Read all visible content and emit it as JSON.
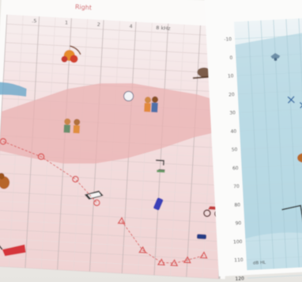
{
  "chart_data": {
    "type": "scatter",
    "title": "",
    "ear_label": "Right",
    "top_ticks": [
      ".5",
      "1",
      "2",
      "4",
      "8 kHz"
    ],
    "left_chart_xlim": [
      -1,
      6
    ],
    "left_chart_ylim": [
      -15,
      120
    ],
    "db_ticks": [
      "-10",
      "0",
      "10",
      "20",
      "30",
      "40",
      "50",
      "60",
      "70",
      "80",
      "90",
      "100",
      "110",
      "120"
    ],
    "db_unit_label": "dB HL",
    "series": [
      {
        "symbol": "circle",
        "color": "#d9504f",
        "x": [
          -0.9,
          0.3,
          1.4,
          2.1
        ],
        "y": [
          53,
          60,
          71,
          83
        ]
      },
      {
        "symbol": "triangle",
        "color": "#d9504f",
        "x": [
          2.9,
          3.6,
          4.2,
          4.6,
          5.0,
          5.5
        ],
        "y": [
          92,
          107,
          113,
          113,
          111,
          108
        ]
      }
    ],
    "speech_banana_upper": [
      [
        -1,
        37
      ],
      [
        0,
        30
      ],
      [
        1,
        23
      ],
      [
        2,
        19
      ],
      [
        3,
        18
      ],
      [
        4,
        20
      ],
      [
        5,
        22
      ],
      [
        6,
        26
      ]
    ],
    "speech_banana_lower": [
      [
        -1,
        58
      ],
      [
        0,
        61
      ],
      [
        1,
        63
      ],
      [
        2,
        62
      ],
      [
        3,
        58
      ],
      [
        4,
        52
      ],
      [
        5,
        45
      ],
      [
        6,
        40
      ]
    ],
    "illustrations": [
      {
        "name": "leaves-icon",
        "x": 1.0,
        "y": 5
      },
      {
        "name": "bird-icon",
        "x": 5.2,
        "y": 10
      },
      {
        "name": "clock-icon",
        "x": 2.9,
        "y": 25
      },
      {
        "name": "children-icon",
        "x": 3.6,
        "y": 29
      },
      {
        "name": "children-talking-icon",
        "x": 1.2,
        "y": 43
      },
      {
        "name": "faucet-icon",
        "x": 4.0,
        "y": 61
      },
      {
        "name": "dog-icon",
        "x": -0.8,
        "y": 75
      },
      {
        "name": "piano-icon",
        "x": 2.0,
        "y": 79
      },
      {
        "name": "phone-icon",
        "x": 4.0,
        "y": 82
      },
      {
        "name": "motorcycle-icon",
        "x": 5.7,
        "y": 84
      },
      {
        "name": "car-icon",
        "x": 5.4,
        "y": 98
      },
      {
        "name": "lawnmower-icon",
        "x": -0.4,
        "y": 110
      }
    ]
  }
}
